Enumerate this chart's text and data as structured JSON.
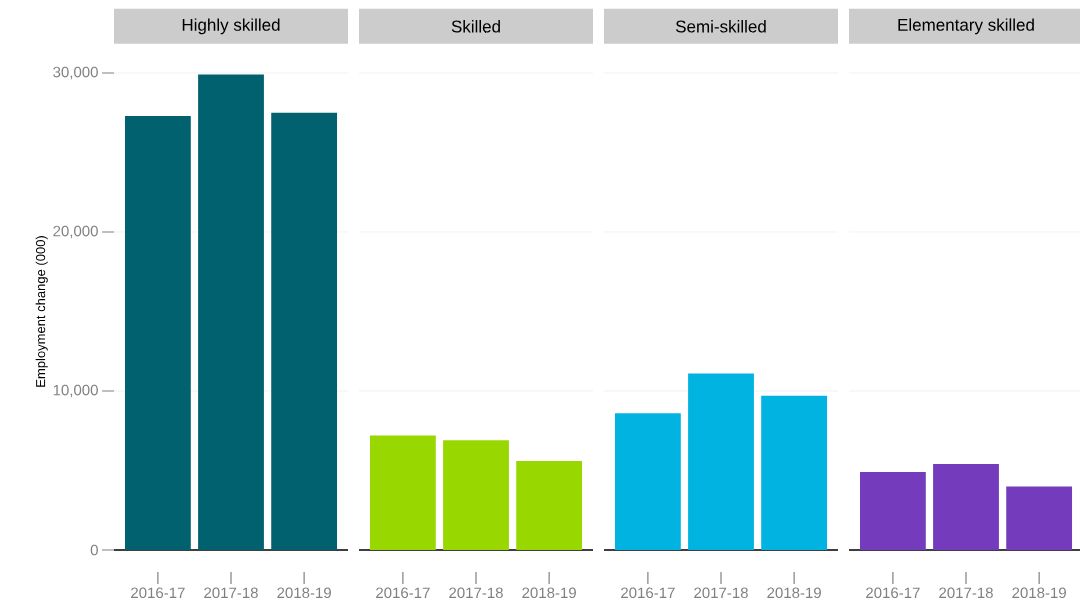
{
  "chart_data": [
    {
      "type": "bar",
      "title": "Highly skilled",
      "ylabel": "Employment change (000)",
      "categories": [
        "2016-17",
        "2017-18",
        "2018-19"
      ],
      "values": [
        27300,
        29900,
        27500
      ],
      "color": "#02616f",
      "ylim": [
        0,
        30000
      ],
      "yticks": [
        0,
        {
          "value": 10000,
          "label": "10,000"
        },
        {
          "value": 20000,
          "label": "20,000"
        },
        {
          "value": 30000,
          "label": "30,000"
        }
      ],
      "grid": "y"
    },
    {
      "type": "bar",
      "title": "Skilled",
      "categories": [
        "2016-17",
        "2017-18",
        "2018-19"
      ],
      "values": [
        7200,
        6900,
        5600
      ],
      "color": "#98d700",
      "ylim": [
        0,
        30000
      ],
      "yticks": [
        0,
        10000,
        20000,
        30000
      ],
      "grid": "y",
      "tick_labels": "x"
    },
    {
      "type": "bar",
      "title": "Semi-skilled",
      "categories": [
        "2016-17",
        "2017-18",
        "2018-19"
      ],
      "values": [
        8600,
        11100,
        9700
      ],
      "color": "#00b3e0",
      "ylim": [
        0,
        30000
      ],
      "yticks": [
        0,
        10000,
        20000,
        30000
      ],
      "grid": "y",
      "tick_labels": "x"
    },
    {
      "type": "bar",
      "title": "Elementary skilled",
      "categories": [
        "2016-17",
        "2017-18",
        "2018-19"
      ],
      "values": [
        4900,
        5400,
        4000
      ],
      "color": "#743bbc",
      "ylim": [
        0,
        30000
      ],
      "yticks": [
        0,
        10000,
        20000,
        30000
      ],
      "grid": "y",
      "tick_labels": "x"
    }
  ]
}
